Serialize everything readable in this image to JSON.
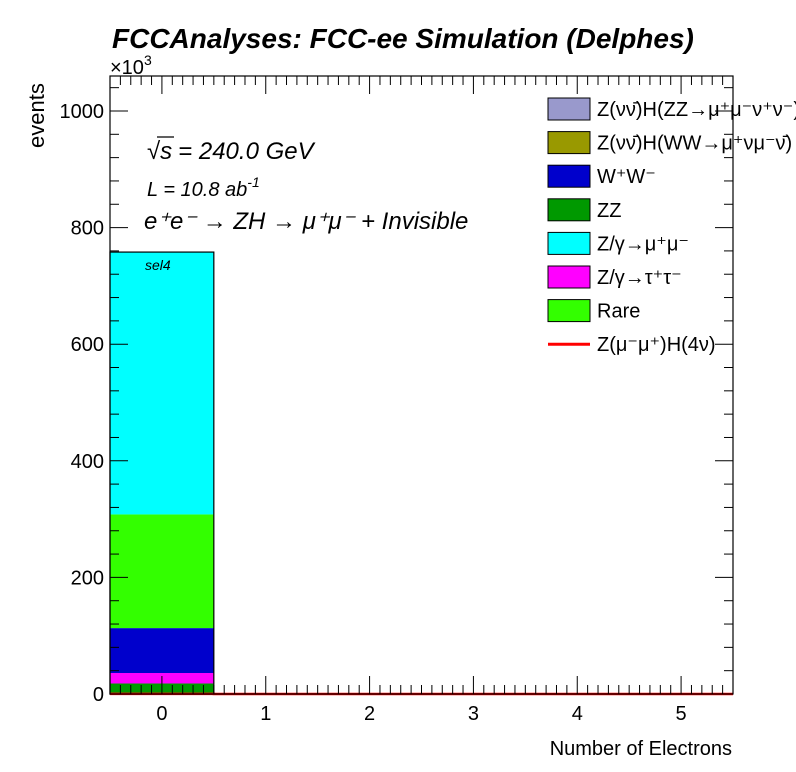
{
  "header": {
    "title": "FCCAnalyses: FCC-ee Simulation (Delphes)",
    "exponent_base": "×10",
    "exponent_power": "3"
  },
  "annotations": {
    "sqrt_prefix": "√",
    "sqrt_s": "s",
    "energy": "= 240.0 GeV",
    "lumi_main": "L = 10.8 ab",
    "lumi_power": "-1",
    "process": "e⁺e⁻ → ZH → μ⁺μ⁻ + Invisible",
    "selection": "sel4"
  },
  "chart_data": {
    "type": "bar",
    "stacked": true,
    "xlabel": "Number of Electrons",
    "ylabel": "events",
    "x_tick_labels": [
      "0",
      "1",
      "2",
      "3",
      "4",
      "5"
    ],
    "y_tick_labels": [
      "0",
      "200",
      "400",
      "600",
      "800",
      "1000"
    ],
    "y_tick_values": [
      0,
      200,
      400,
      600,
      800,
      1000
    ],
    "xlim": [
      -0.5,
      5.5
    ],
    "ylim": [
      0,
      1060
    ],
    "y_unit_multiplier": 1000,
    "bin_edges": [
      -0.5,
      0.5,
      1.5,
      2.5,
      3.5,
      4.5,
      5.5
    ],
    "legend_position": "top-right",
    "grid": false,
    "series": [
      {
        "name": "ZZ",
        "color": "#009900",
        "values": [
          18,
          0,
          0,
          0,
          0,
          0
        ]
      },
      {
        "name": "Z/γ→τ⁺τ⁻",
        "color": "#ff00ff",
        "values": [
          18,
          0,
          0,
          0,
          0,
          0
        ]
      },
      {
        "name": "W⁺W⁻",
        "color": "#0000cc",
        "values": [
          77,
          0,
          0,
          0,
          0,
          0
        ]
      },
      {
        "name": "Rare",
        "color": "#33ff00",
        "values": [
          195,
          0,
          0,
          0,
          0,
          0
        ]
      },
      {
        "name": "Z/γ→μ⁺μ⁻",
        "color": "#00ffff",
        "values": [
          450,
          0,
          0,
          0,
          0,
          0
        ]
      },
      {
        "name": "Z(νν̄)H(WW→μ⁺νμ⁻ν̄)",
        "color": "#999900",
        "values": [
          0,
          0,
          0,
          0,
          0,
          0
        ]
      },
      {
        "name": "Z(νν̄)H(ZZ→μ⁺μ⁻ν⁺ν⁻)",
        "color": "#9999cc",
        "values": [
          0,
          0,
          0,
          0,
          0,
          0
        ]
      }
    ],
    "signal": {
      "name": "Z(μ⁻μ⁺)H(4ν)",
      "color": "#ff0000",
      "values": [
        0.3,
        0,
        0,
        0,
        0,
        0
      ]
    },
    "legend": [
      {
        "label": "Z(νν̄)H(ZZ→μ⁺μ⁻ν⁺ν⁻)",
        "color": "#9999cc",
        "kind": "box"
      },
      {
        "label": "Z(νν̄)H(WW→μ⁺νμ⁻ν̄)",
        "color": "#999900",
        "kind": "box"
      },
      {
        "label": "W⁺W⁻",
        "color": "#0000cc",
        "kind": "box"
      },
      {
        "label": "ZZ",
        "color": "#009900",
        "kind": "box"
      },
      {
        "label": "Z/γ→μ⁺μ⁻",
        "color": "#00ffff",
        "kind": "box"
      },
      {
        "label": "Z/γ→τ⁺τ⁻",
        "color": "#ff00ff",
        "kind": "box"
      },
      {
        "label": "Rare",
        "color": "#33ff00",
        "kind": "box"
      },
      {
        "label": "Z(μ⁻μ⁺)H(4ν)",
        "color": "#ff0000",
        "kind": "line"
      }
    ]
  }
}
